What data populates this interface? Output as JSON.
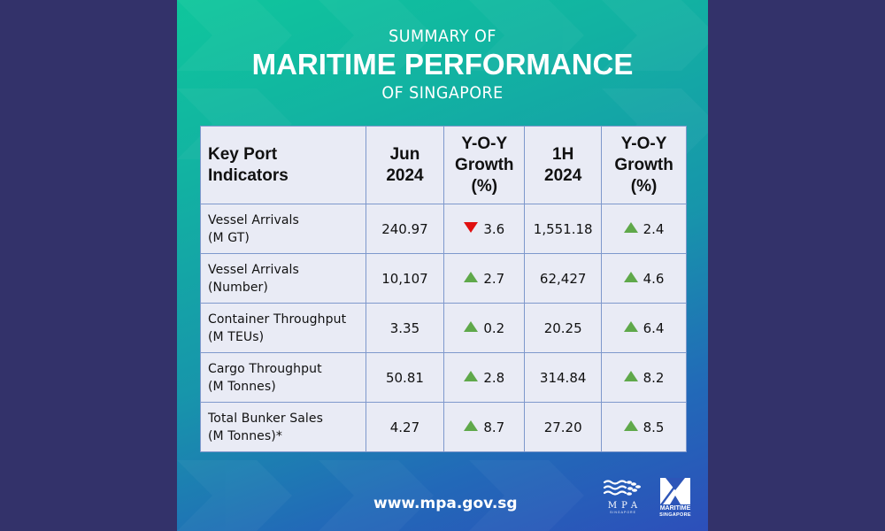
{
  "title": {
    "line1": "SUMMARY OF",
    "line2": "MARITIME PERFORMANCE",
    "line3": "OF SINGAPORE"
  },
  "table": {
    "headers": [
      {
        "line1": "Key Port",
        "line2": "Indicators",
        "line3": ""
      },
      {
        "line1": "Jun",
        "line2": "2024",
        "line3": ""
      },
      {
        "line1": "Y-O-Y",
        "line2": "Growth",
        "line3": "(%)"
      },
      {
        "line1": "1H",
        "line2": "2024",
        "line3": ""
      },
      {
        "line1": "Y-O-Y",
        "line2": "Growth",
        "line3": "(%)"
      }
    ],
    "rows": [
      {
        "indicator": "Vessel Arrivals",
        "unit": "(M GT)",
        "jun_2024": "240.97",
        "jun_yoy": "3.6",
        "jun_yoy_direction": "down",
        "h1_2024": "1,551.18",
        "h1_yoy": "2.4",
        "h1_yoy_direction": "up"
      },
      {
        "indicator": "Vessel Arrivals",
        "unit": "(Number)",
        "jun_2024": "10,107",
        "jun_yoy": "2.7",
        "jun_yoy_direction": "up",
        "h1_2024": "62,427",
        "h1_yoy": "4.6",
        "h1_yoy_direction": "up"
      },
      {
        "indicator": "Container Throughput",
        "unit": "(M TEUs)",
        "jun_2024": "3.35",
        "jun_yoy": "0.2",
        "jun_yoy_direction": "up",
        "h1_2024": "20.25",
        "h1_yoy": "6.4",
        "h1_yoy_direction": "up"
      },
      {
        "indicator": "Cargo Throughput",
        "unit": "(M Tonnes)",
        "jun_2024": "50.81",
        "jun_yoy": "2.8",
        "jun_yoy_direction": "up",
        "h1_2024": "314.84",
        "h1_yoy": "8.2",
        "h1_yoy_direction": "up"
      },
      {
        "indicator": "Total Bunker Sales",
        "unit": "(M Tonnes)*",
        "jun_2024": "4.27",
        "jun_yoy": "8.7",
        "jun_yoy_direction": "up",
        "h1_2024": "27.20",
        "h1_yoy": "8.5",
        "h1_yoy_direction": "up"
      }
    ]
  },
  "footer": {
    "url": "www.mpa.gov.sg",
    "logo_mpa": {
      "name": "MPA",
      "sub": "SINGAPORE"
    },
    "logo_maritime": {
      "line1": "MARITIME",
      "line2": "SINGAPORE"
    }
  },
  "colors": {
    "up": "#5fa84a",
    "down": "#e01010",
    "page_background": "#33326a",
    "table_background": "#e9ebf5",
    "table_border": "#7e98cc"
  }
}
